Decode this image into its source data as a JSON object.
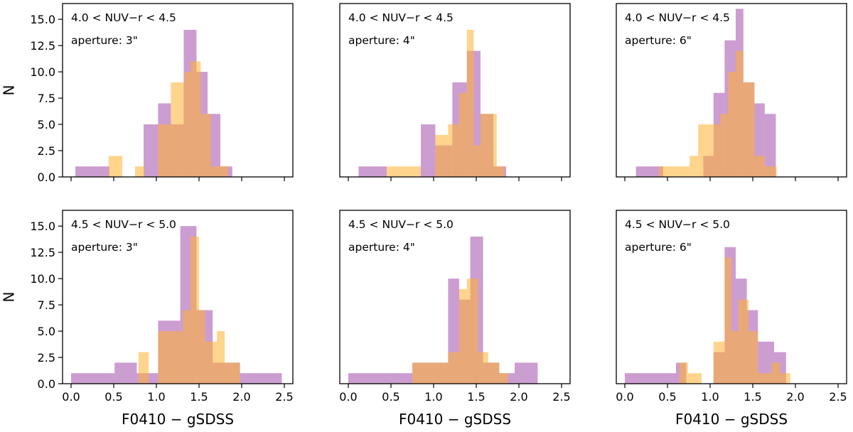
{
  "colors": {
    "purple": "#a34dac",
    "orange": "#ffb12f",
    "overlap": "#c25f6e"
  },
  "chart_data": [
    {
      "type": "histogram",
      "row": 0,
      "col": 0,
      "annotation": "4.0 < NUV−r < 4.5",
      "aperture_label": "aperture: 3\"",
      "xlim": [
        -0.1,
        2.6
      ],
      "ylim": [
        0,
        16.5
      ],
      "xticks": [
        0.0,
        0.5,
        1.0,
        1.5,
        2.0,
        2.5
      ],
      "yticks": [
        "0.0",
        "2.5",
        "5.0",
        "7.5",
        "10.0",
        "12.5",
        "15.0"
      ],
      "ylabel": "N",
      "xlabel": "",
      "series": [
        {
          "name": "purple",
          "bins": [
            [
              0.05,
              0.45,
              1
            ],
            [
              0.85,
              1.02,
              5
            ],
            [
              1.02,
              1.17,
              7
            ],
            [
              1.17,
              1.32,
              5
            ],
            [
              1.32,
              1.47,
              14
            ],
            [
              1.47,
              1.6,
              10
            ],
            [
              1.6,
              1.75,
              6
            ],
            [
              1.75,
              1.89,
              1
            ]
          ]
        },
        {
          "name": "orange",
          "bins": [
            [
              0.44,
              0.6,
              2
            ],
            [
              0.75,
              0.86,
              1
            ],
            [
              1.02,
              1.17,
              5
            ],
            [
              1.17,
              1.33,
              9
            ],
            [
              1.33,
              1.4,
              10
            ],
            [
              1.4,
              1.52,
              11
            ],
            [
              1.52,
              1.64,
              6
            ],
            [
              1.64,
              1.84,
              1
            ]
          ]
        }
      ]
    },
    {
      "type": "histogram",
      "row": 0,
      "col": 1,
      "annotation": "4.0 < NUV−r < 4.5",
      "aperture_label": "aperture: 4\"",
      "xlim": [
        -0.1,
        2.6
      ],
      "ylim": [
        0,
        16.5
      ],
      "xticks": [
        0.0,
        0.5,
        1.0,
        1.5,
        2.0,
        2.5
      ],
      "yticks": [],
      "ylabel": "",
      "xlabel": "",
      "series": [
        {
          "name": "purple",
          "bins": [
            [
              0.12,
              0.45,
              1
            ],
            [
              0.45,
              0.85,
              0
            ],
            [
              0.85,
              1.02,
              5
            ],
            [
              1.02,
              1.22,
              3
            ],
            [
              1.22,
              1.39,
              9
            ],
            [
              1.39,
              1.55,
              12
            ],
            [
              1.55,
              1.7,
              6
            ],
            [
              1.7,
              1.85,
              1
            ]
          ]
        },
        {
          "name": "orange",
          "bins": [
            [
              0.45,
              0.85,
              1
            ],
            [
              0.85,
              1.02,
              0
            ],
            [
              1.02,
              1.17,
              4
            ],
            [
              1.17,
              1.3,
              5
            ],
            [
              1.3,
              1.39,
              8
            ],
            [
              1.39,
              1.47,
              14
            ],
            [
              1.47,
              1.55,
              3
            ],
            [
              1.55,
              1.74,
              6
            ],
            [
              1.74,
              1.83,
              1
            ]
          ]
        }
      ]
    },
    {
      "type": "histogram",
      "row": 0,
      "col": 2,
      "annotation": "4.0 < NUV−r < 4.5",
      "aperture_label": "aperture: 6\"",
      "xlim": [
        -0.1,
        2.6
      ],
      "ylim": [
        0,
        16.5
      ],
      "xticks": [
        0.0,
        0.5,
        1.0,
        1.5,
        2.0,
        2.5
      ],
      "yticks": [],
      "ylabel": "",
      "xlabel": "",
      "series": [
        {
          "name": "purple",
          "bins": [
            [
              0.13,
              0.45,
              1
            ],
            [
              0.45,
              0.7,
              0
            ],
            [
              0.7,
              0.92,
              0
            ],
            [
              0.92,
              1.04,
              2
            ],
            [
              1.04,
              1.17,
              8
            ],
            [
              1.17,
              1.3,
              13
            ],
            [
              1.3,
              1.39,
              16
            ],
            [
              1.39,
              1.52,
              9
            ],
            [
              1.52,
              1.64,
              7
            ],
            [
              1.64,
              1.77,
              6
            ]
          ]
        },
        {
          "name": "orange",
          "bins": [
            [
              0.4,
              0.55,
              1
            ],
            [
              0.55,
              0.76,
              1
            ],
            [
              0.76,
              0.86,
              2
            ],
            [
              0.86,
              1.04,
              5
            ],
            [
              1.04,
              1.12,
              5
            ],
            [
              1.12,
              1.21,
              6
            ],
            [
              1.21,
              1.3,
              10
            ],
            [
              1.3,
              1.39,
              12
            ],
            [
              1.39,
              1.52,
              9
            ],
            [
              1.52,
              1.64,
              2
            ],
            [
              1.64,
              1.78,
              1
            ]
          ]
        }
      ]
    },
    {
      "type": "histogram",
      "row": 1,
      "col": 0,
      "annotation": "4.5 < NUV−r < 5.0",
      "aperture_label": "aperture: 3\"",
      "xlim": [
        -0.1,
        2.6
      ],
      "ylim": [
        0,
        16.5
      ],
      "xticks": [
        "0.0",
        "0.5",
        "1.0",
        "1.5",
        "2.0",
        "2.5"
      ],
      "yticks": [
        "0.0",
        "2.5",
        "5.0",
        "7.5",
        "10.0",
        "12.5",
        "15.0"
      ],
      "ylabel": "N",
      "xlabel": "F0410 − gSDSS",
      "series": [
        {
          "name": "purple",
          "bins": [
            [
              0.0,
              0.51,
              1
            ],
            [
              0.51,
              0.77,
              2
            ],
            [
              0.77,
              1.02,
              1
            ],
            [
              1.02,
              1.28,
              6
            ],
            [
              1.28,
              1.47,
              15
            ],
            [
              1.47,
              1.66,
              7
            ],
            [
              1.66,
              1.98,
              2
            ],
            [
              1.98,
              2.47,
              1
            ]
          ]
        },
        {
          "name": "orange",
          "bins": [
            [
              0.79,
              0.91,
              3
            ],
            [
              1.02,
              1.17,
              5
            ],
            [
              1.17,
              1.31,
              5
            ],
            [
              1.31,
              1.4,
              7
            ],
            [
              1.4,
              1.5,
              14
            ],
            [
              1.5,
              1.57,
              7
            ],
            [
              1.57,
              1.71,
              4
            ],
            [
              1.71,
              1.8,
              5
            ],
            [
              1.8,
              1.98,
              2
            ]
          ]
        }
      ]
    },
    {
      "type": "histogram",
      "row": 1,
      "col": 1,
      "annotation": "4.5 < NUV−r < 5.0",
      "aperture_label": "aperture: 4\"",
      "xlim": [
        -0.1,
        2.6
      ],
      "ylim": [
        0,
        16.5
      ],
      "xticks": [
        "0.0",
        "0.5",
        "1.0",
        "1.5",
        "2.0",
        "2.5"
      ],
      "yticks": [],
      "ylabel": "",
      "xlabel": "F0410 − gSDSS",
      "series": [
        {
          "name": "purple",
          "bins": [
            [
              0.0,
              0.75,
              1
            ],
            [
              0.75,
              1.17,
              2
            ],
            [
              1.17,
              1.3,
              10
            ],
            [
              1.3,
              1.43,
              8
            ],
            [
              1.43,
              1.58,
              14
            ],
            [
              1.58,
              1.77,
              2
            ],
            [
              1.77,
              1.95,
              1
            ],
            [
              1.95,
              2.22,
              2
            ]
          ]
        },
        {
          "name": "orange",
          "bins": [
            [
              0.75,
              1.17,
              2
            ],
            [
              1.17,
              1.3,
              3
            ],
            [
              1.3,
              1.39,
              9
            ],
            [
              1.39,
              1.52,
              10
            ],
            [
              1.52,
              1.64,
              3
            ],
            [
              1.64,
              1.77,
              2
            ],
            [
              1.77,
              1.87,
              1
            ]
          ]
        }
      ]
    },
    {
      "type": "histogram",
      "row": 1,
      "col": 2,
      "annotation": "4.5 < NUV−r < 5.0",
      "aperture_label": "aperture: 6\"",
      "xlim": [
        -0.1,
        2.6
      ],
      "ylim": [
        0,
        16.5
      ],
      "xticks": [
        "0.0",
        "0.5",
        "1.0",
        "1.5",
        "2.0",
        "2.5"
      ],
      "yticks": [],
      "ylabel": "",
      "xlabel": "F0410 − gSDSS",
      "series": [
        {
          "name": "purple",
          "bins": [
            [
              0.0,
              0.6,
              1
            ],
            [
              0.6,
              0.72,
              2
            ],
            [
              0.72,
              1.04,
              0
            ],
            [
              1.04,
              1.17,
              3
            ],
            [
              1.17,
              1.3,
              13
            ],
            [
              1.3,
              1.43,
              10
            ],
            [
              1.43,
              1.56,
              7
            ],
            [
              1.56,
              1.75,
              4
            ],
            [
              1.75,
              1.89,
              3
            ]
          ]
        },
        {
          "name": "orange",
          "bins": [
            [
              0.64,
              0.74,
              2
            ],
            [
              0.74,
              0.9,
              1
            ],
            [
              0.9,
              1.04,
              0
            ],
            [
              1.04,
              1.17,
              4
            ],
            [
              1.17,
              1.25,
              12
            ],
            [
              1.25,
              1.33,
              5
            ],
            [
              1.33,
              1.45,
              8
            ],
            [
              1.45,
              1.56,
              5
            ],
            [
              1.56,
              1.72,
              1
            ],
            [
              1.72,
              1.82,
              2
            ],
            [
              1.82,
              1.94,
              1
            ]
          ]
        }
      ]
    }
  ]
}
